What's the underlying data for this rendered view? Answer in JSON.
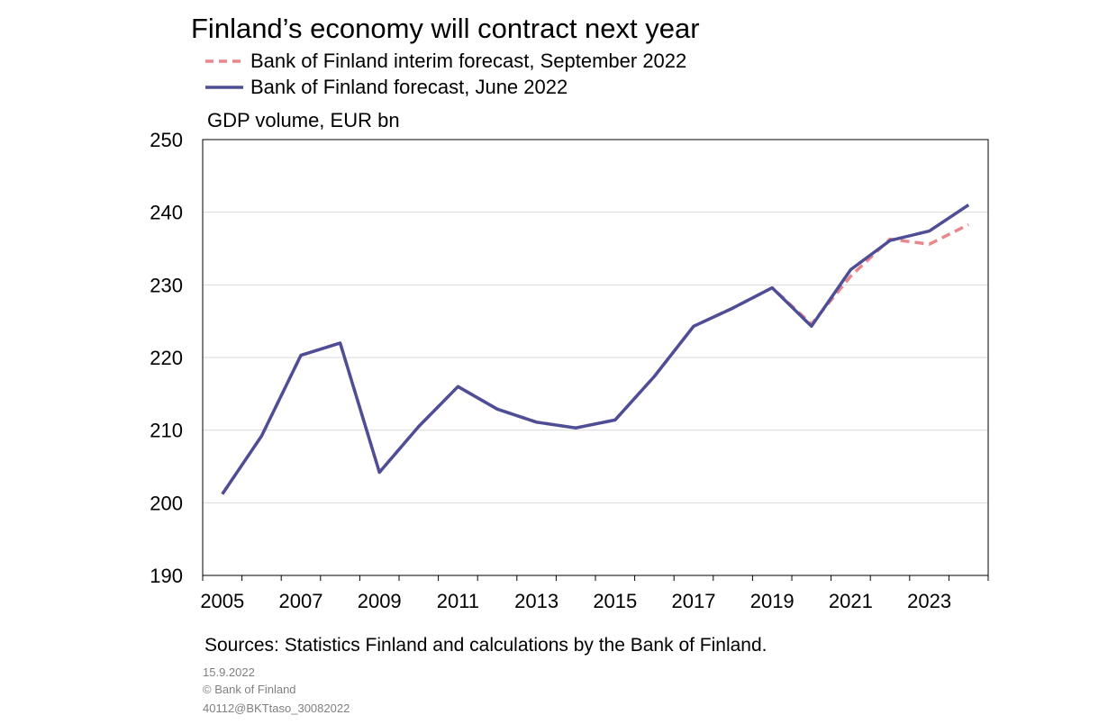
{
  "chart_data": {
    "type": "line",
    "title": "Finland’s economy will contract next year",
    "ylabel": "GDP volume, EUR bn",
    "xlabel": "",
    "ylim": [
      190,
      250
    ],
    "yticks": [
      190,
      200,
      210,
      220,
      230,
      240,
      250
    ],
    "xlim": [
      2004.5,
      2024.5
    ],
    "xtick_labels": [
      "2005",
      "2007",
      "2009",
      "2011",
      "2013",
      "2015",
      "2017",
      "2019",
      "2021",
      "2023"
    ],
    "grid": true,
    "legend_position": "top",
    "x": [
      2005,
      2006,
      2007,
      2008,
      2009,
      2010,
      2011,
      2012,
      2013,
      2014,
      2015,
      2016,
      2017,
      2018,
      2019,
      2020,
      2021,
      2022,
      2023,
      2024
    ],
    "series": [
      {
        "name": "Bank of Finland interim forecast, September 2022",
        "color": "#E8878C",
        "style": "dashed",
        "values": [
          201.2,
          209.2,
          220.3,
          222.0,
          204.2,
          210.5,
          216.0,
          212.9,
          211.1,
          210.3,
          211.4,
          217.4,
          224.3,
          226.8,
          229.6,
          224.6,
          231.2,
          236.3,
          235.6,
          238.3
        ]
      },
      {
        "name": "Bank of Finland forecast, June 2022",
        "color": "#4E4E97",
        "style": "solid",
        "values": [
          201.2,
          209.2,
          220.3,
          222.0,
          204.2,
          210.5,
          216.0,
          212.9,
          211.1,
          210.3,
          211.4,
          217.4,
          224.3,
          226.8,
          229.6,
          224.3,
          232.1,
          236.1,
          237.4,
          241.0
        ]
      }
    ]
  },
  "sources": "Sources: Statistics Finland and calculations by the Bank of Finland.",
  "footer": {
    "date": "15.9.2022",
    "copyright": "© Bank of Finland",
    "code": "40112@BKTtaso_30082022"
  }
}
